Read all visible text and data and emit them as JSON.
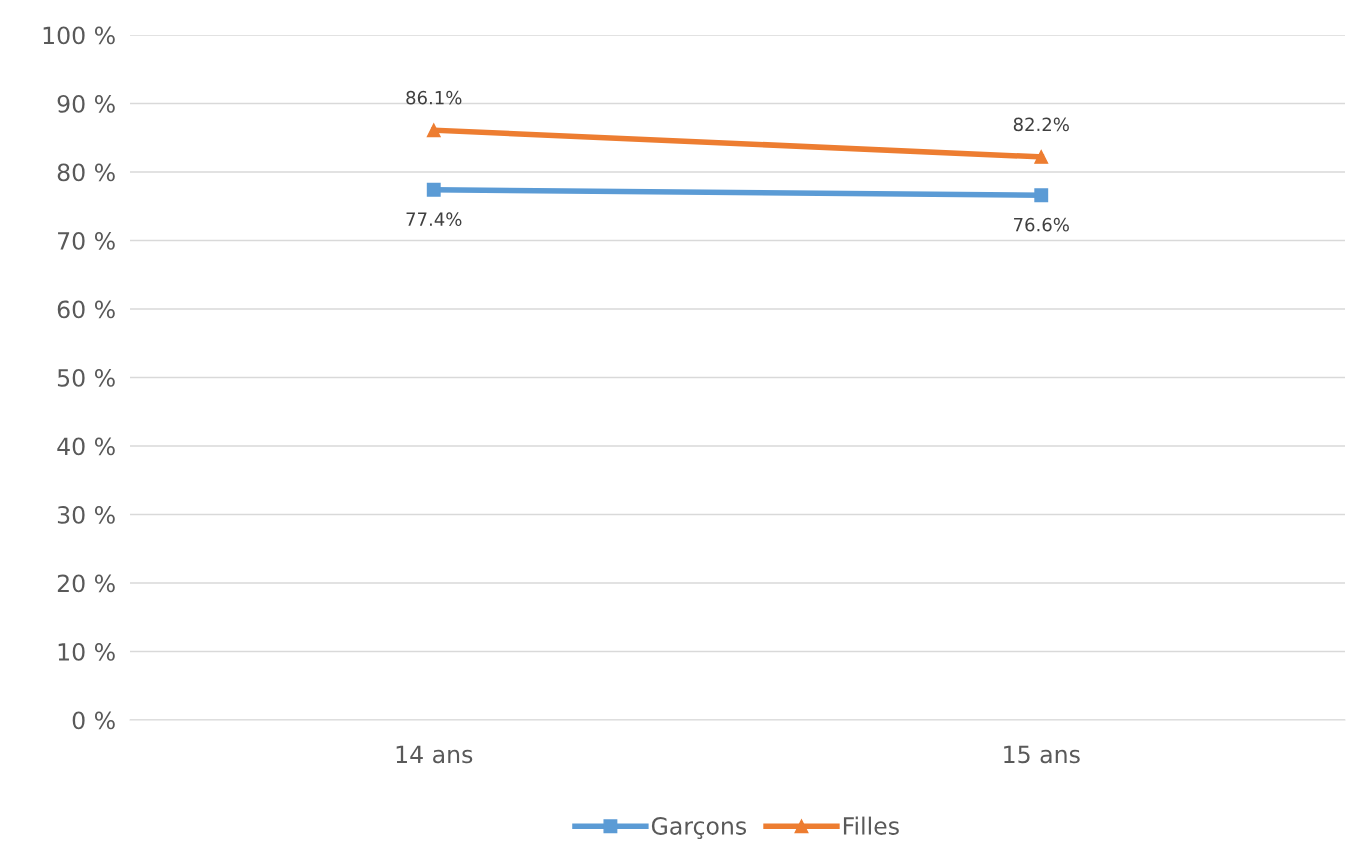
{
  "chart_data": {
    "type": "line",
    "categories": [
      "14 ans",
      "15 ans"
    ],
    "series": [
      {
        "name": "Garçons",
        "color": "#5b9bd5",
        "marker": "square",
        "values": [
          77.4,
          76.6
        ],
        "value_labels": [
          "77.4%",
          "76.6%"
        ]
      },
      {
        "name": "Filles",
        "color": "#ed7d31",
        "marker": "triangle",
        "values": [
          86.1,
          82.2
        ],
        "value_labels": [
          "86.1%",
          "82.2%"
        ]
      }
    ],
    "ylim": [
      0,
      100
    ],
    "yticks": [
      {
        "value": 0,
        "label": "0 %"
      },
      {
        "value": 10,
        "label": "10 %"
      },
      {
        "value": 20,
        "label": "20 %"
      },
      {
        "value": 30,
        "label": "30 %"
      },
      {
        "value": 40,
        "label": "40 %"
      },
      {
        "value": 50,
        "label": "50 %"
      },
      {
        "value": 60,
        "label": "60 %"
      },
      {
        "value": 70,
        "label": "70 %"
      },
      {
        "value": 80,
        "label": "80 %"
      },
      {
        "value": 90,
        "label": "90 %"
      },
      {
        "value": 100,
        "label": "100 %"
      }
    ],
    "grid": "y",
    "legend": "bottom",
    "line_style": "solid"
  }
}
